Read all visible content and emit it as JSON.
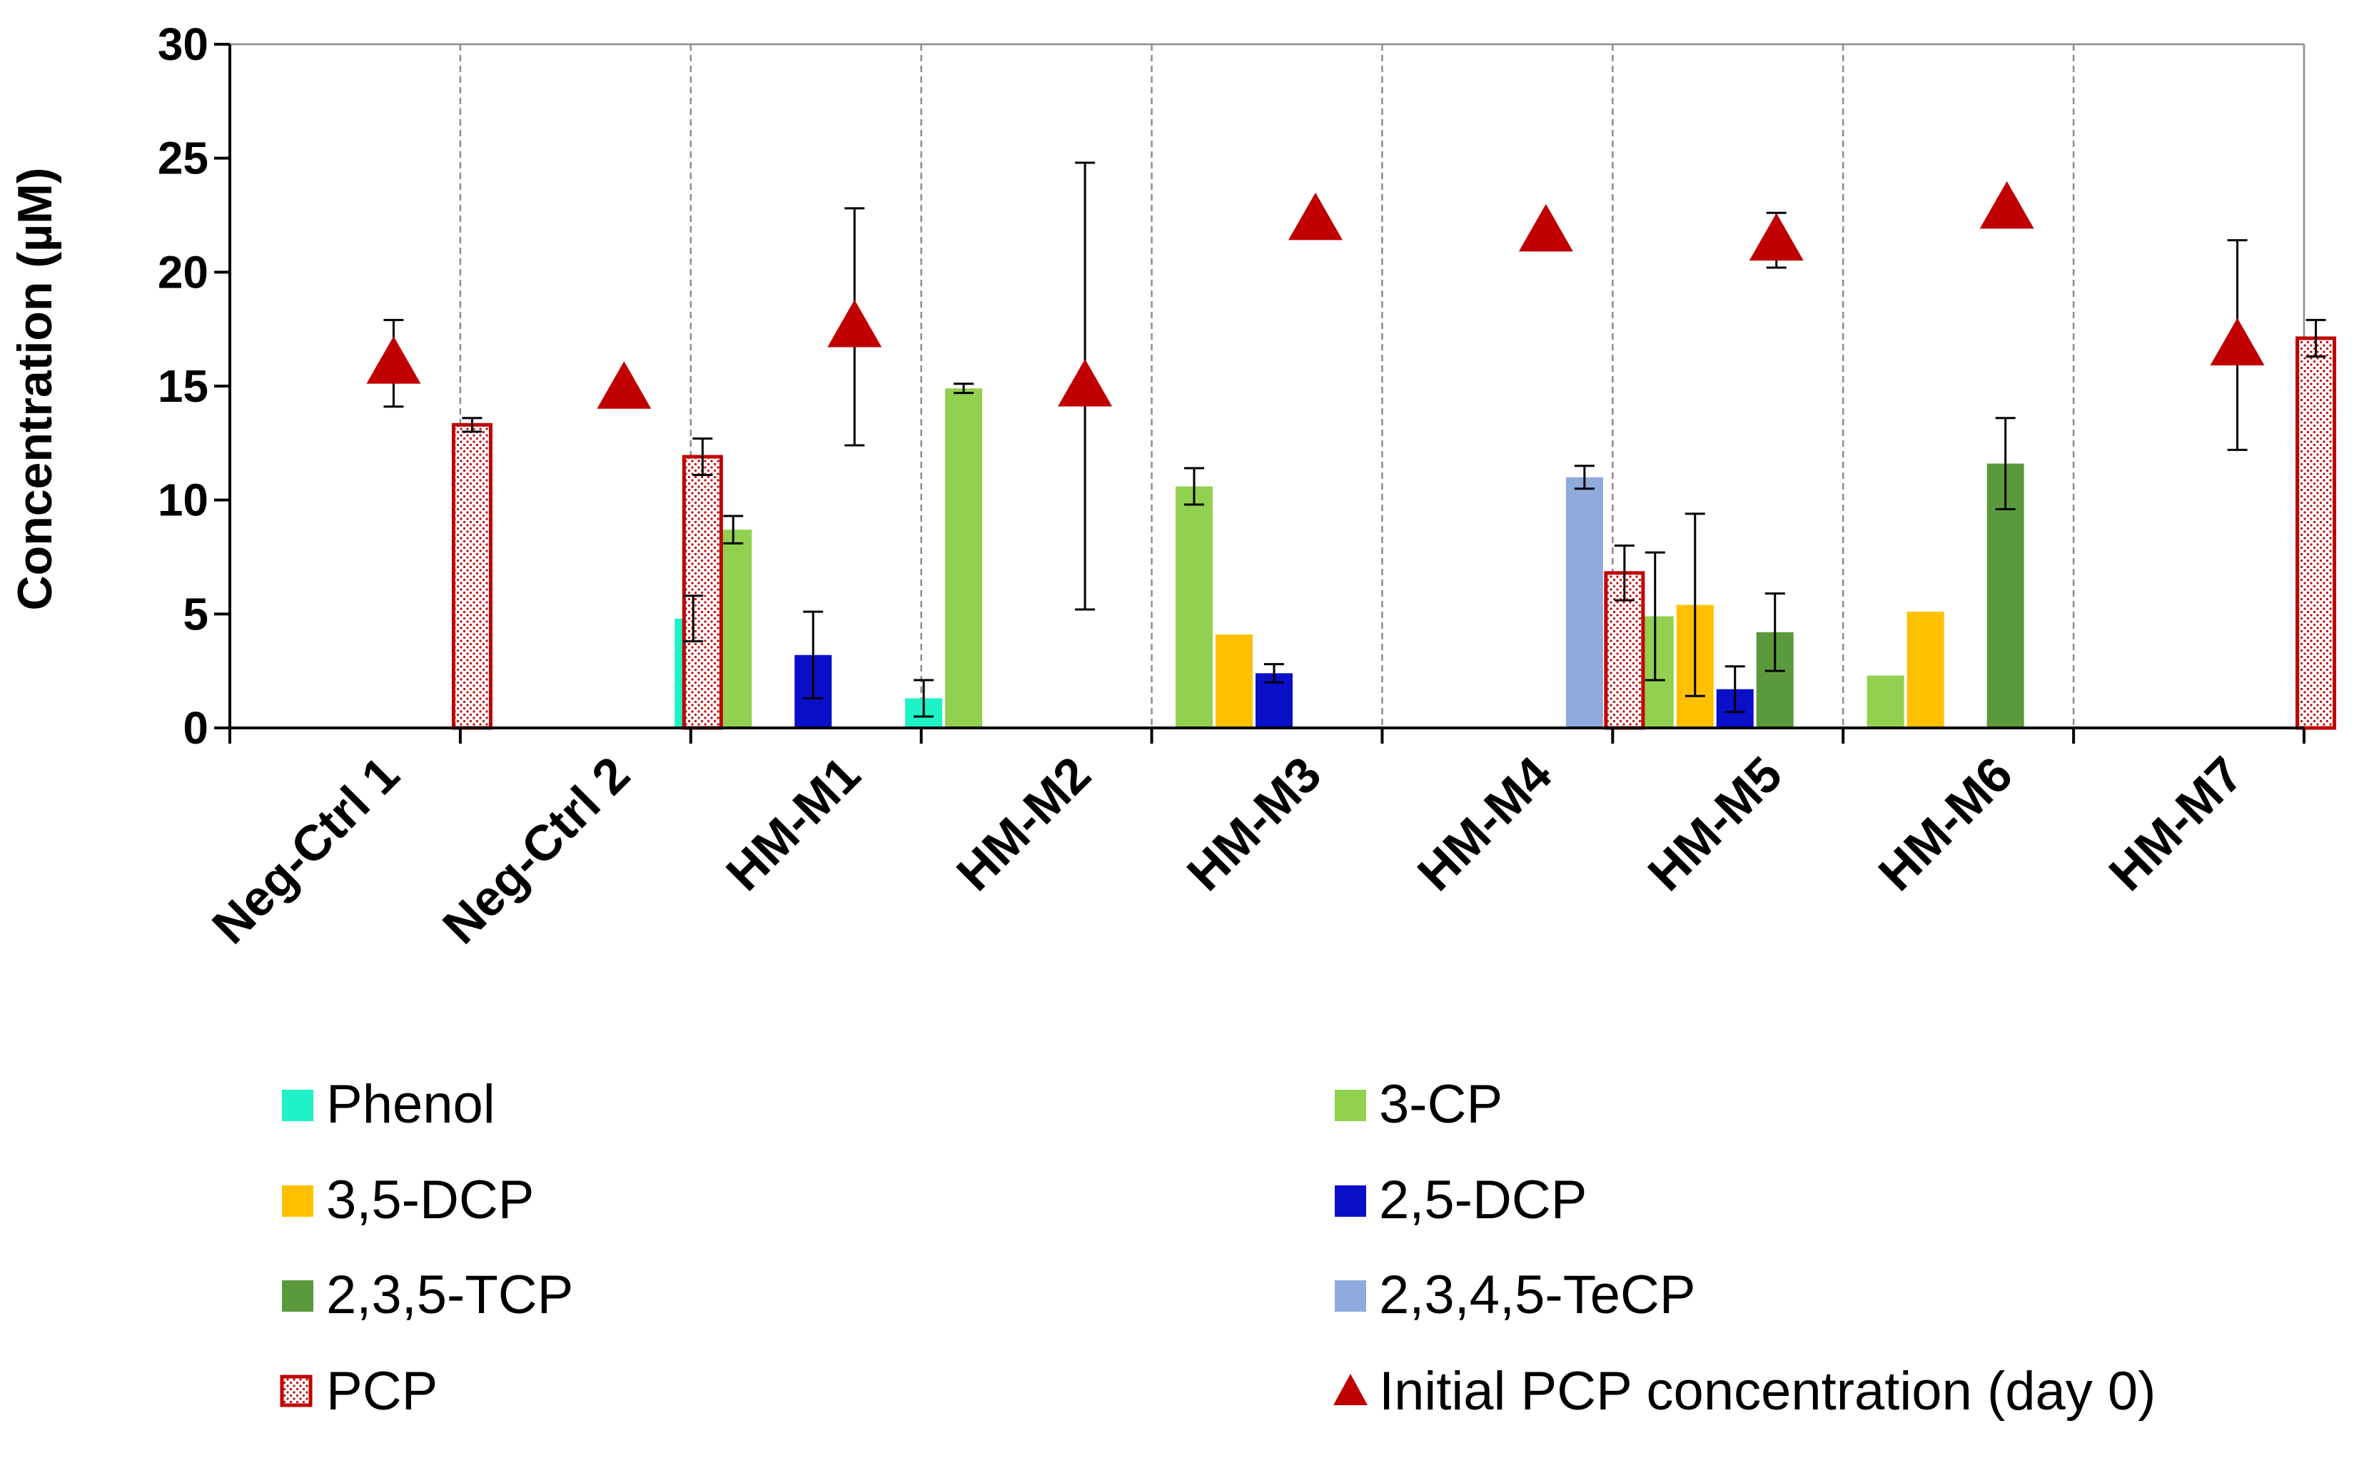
{
  "chart_data": {
    "type": "bar",
    "title": "",
    "xlabel": "",
    "ylabel": "Concentration (µM)",
    "ylim": [
      0,
      30
    ],
    "yticks": [
      "0",
      "5",
      "10",
      "15",
      "20",
      "25",
      "30"
    ],
    "categories": [
      "Neg-Ctrl 1",
      "Neg-Ctrl 2",
      "HM-M1",
      "HM-M2",
      "HM-M3",
      "HM-M4",
      "HM-M5",
      "HM-M6",
      "HM-M7"
    ],
    "series": [
      {
        "name": "Phenol",
        "color": "#1EF2C6",
        "pattern": "solid",
        "values": [
          0,
          0,
          4.8,
          1.3,
          0,
          0,
          0,
          0,
          0
        ],
        "errors": [
          0,
          0,
          1.0,
          0.8,
          0,
          0,
          0,
          0,
          0
        ]
      },
      {
        "name": "3-CP",
        "color": "#92D050",
        "pattern": "solid",
        "values": [
          0,
          0,
          8.7,
          14.9,
          10.6,
          0,
          4.9,
          2.3,
          0
        ],
        "errors": [
          0,
          0,
          0.6,
          0.2,
          0.8,
          0,
          2.8,
          0,
          0
        ]
      },
      {
        "name": "3,5-DCP",
        "color": "#FFC000",
        "pattern": "solid",
        "values": [
          0,
          0,
          0,
          0,
          4.1,
          0,
          5.4,
          5.1,
          0
        ],
        "errors": [
          0,
          0,
          0,
          0,
          0,
          0,
          4.0,
          0,
          0
        ]
      },
      {
        "name": "2,5-DCP",
        "color": "#0A10C8",
        "pattern": "solid",
        "values": [
          0,
          0,
          3.2,
          0,
          2.4,
          0,
          1.7,
          0,
          0
        ],
        "errors": [
          0,
          0,
          1.9,
          0,
          0.4,
          0,
          1.0,
          0,
          0
        ]
      },
      {
        "name": "2,3,5-TCP",
        "color": "#5B9A3C",
        "pattern": "solid",
        "values": [
          0,
          0,
          0,
          0,
          0,
          0,
          4.2,
          11.6,
          0
        ],
        "errors": [
          0,
          0,
          0,
          0,
          0,
          0,
          1.7,
          2.0,
          0
        ]
      },
      {
        "name": "2,3,4,5-TeCP",
        "color": "#8FAADC",
        "pattern": "solid",
        "values": [
          0,
          0,
          0,
          0,
          0,
          11.0,
          0,
          0,
          0
        ],
        "errors": [
          0,
          0,
          0,
          0,
          0,
          0.5,
          0,
          0,
          0
        ]
      },
      {
        "name": "PCP",
        "color": "#C00000",
        "pattern": "dots",
        "values": [
          13.3,
          11.9,
          0,
          0,
          0,
          6.8,
          0,
          0,
          17.1
        ],
        "errors": [
          0.3,
          0.8,
          0,
          0,
          0,
          1.2,
          0,
          0,
          0.8
        ]
      }
    ],
    "markers": {
      "name": "Initial PCP concentration (day 0)",
      "color": "#C00000",
      "shape": "triangle",
      "values": [
        16.0,
        14.9,
        17.6,
        15.0,
        22.3,
        21.8,
        21.4,
        22.8,
        16.8
      ],
      "errors": [
        1.9,
        0.3,
        5.2,
        9.8,
        0.4,
        0,
        1.2,
        0.4,
        4.6
      ]
    },
    "legend": {
      "placement": "bottom",
      "columns": 2,
      "entries": [
        {
          "label": "Phenol",
          "symbol": "square",
          "color": "#1EF2C6",
          "pattern": "solid"
        },
        {
          "label": "3-CP",
          "symbol": "square",
          "color": "#92D050",
          "pattern": "solid"
        },
        {
          "label": "3,5-DCP",
          "symbol": "square",
          "color": "#FFC000",
          "pattern": "solid"
        },
        {
          "label": "2,5-DCP",
          "symbol": "square",
          "color": "#0A10C8",
          "pattern": "solid"
        },
        {
          "label": "2,3,5-TCP",
          "symbol": "square",
          "color": "#5B9A3C",
          "pattern": "solid"
        },
        {
          "label": "2,3,4,5-TeCP",
          "symbol": "square",
          "color": "#8FAADC",
          "pattern": "solid"
        },
        {
          "label": "PCP",
          "symbol": "square",
          "color": "#C00000",
          "pattern": "dots"
        },
        {
          "label": "Initial PCP concentration (day 0)",
          "symbol": "triangle",
          "color": "#C00000",
          "pattern": "solid"
        }
      ]
    },
    "grid": {
      "vertical_separators": true,
      "style": "dashed"
    }
  }
}
